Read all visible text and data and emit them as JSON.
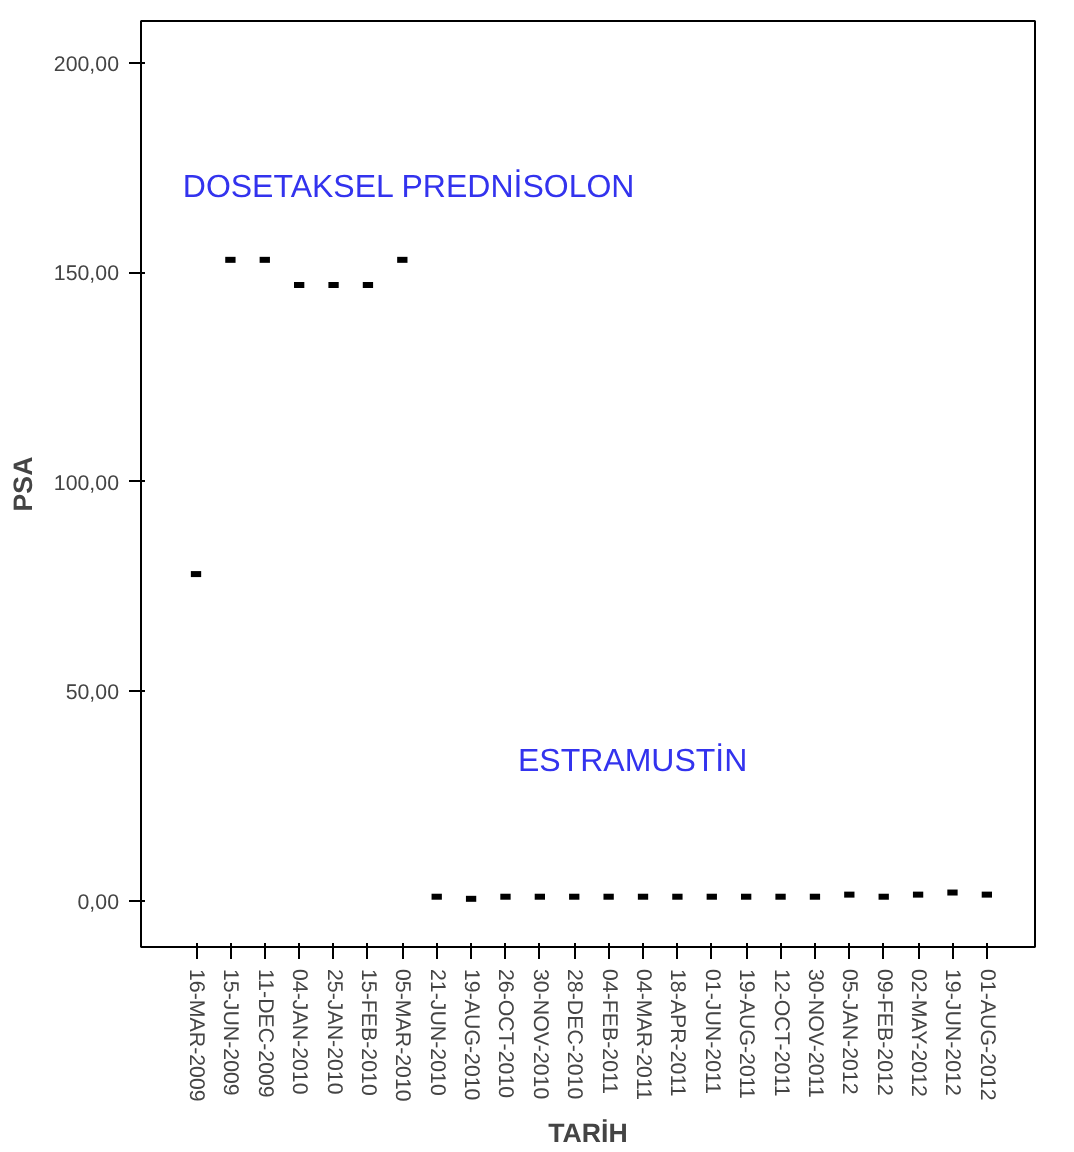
{
  "chart_data": {
    "type": "scatter",
    "xlabel": "TARİH",
    "ylabel": "PSA",
    "categories": [
      "16-MAR-2009",
      "15-JUN-2009",
      "11-DEC-2009",
      "04-JAN-2010",
      "25-JAN-2010",
      "15-FEB-2010",
      "05-MAR-2010",
      "21-JUN-2010",
      "19-AUG-2010",
      "26-OCT-2010",
      "30-NOV-2010",
      "28-DEC-2010",
      "04-FEB-2011",
      "04-MAR-2011",
      "18-APR-2011",
      "01-JUN-2011",
      "19-AUG-2011",
      "12-OCT-2011",
      "30-NOV-2011",
      "05-JAN-2012",
      "09-FEB-2012",
      "02-MAY-2012",
      "19-JUN-2012",
      "01-AUG-2012"
    ],
    "series": [
      {
        "color": "#000000",
        "values": [
          78,
          153,
          153,
          147,
          147,
          147,
          153,
          1,
          0.5,
          1,
          1,
          1,
          1,
          1,
          1,
          1,
          1,
          1,
          1,
          1.5,
          1,
          1.5,
          2,
          1.5
        ]
      }
    ],
    "ylim": [
      -11,
      210
    ],
    "yticks": [
      {
        "value": 0,
        "label": "0,00"
      },
      {
        "value": 50,
        "label": "50,00"
      },
      {
        "value": 100,
        "label": "100,00"
      },
      {
        "value": 150,
        "label": "150,00"
      },
      {
        "value": 200,
        "label": "200,00"
      }
    ],
    "annotations": [
      "DOSETAKSEL PREDNİSOLON",
      "ESTRAMUSTİN"
    ],
    "grid": false
  }
}
